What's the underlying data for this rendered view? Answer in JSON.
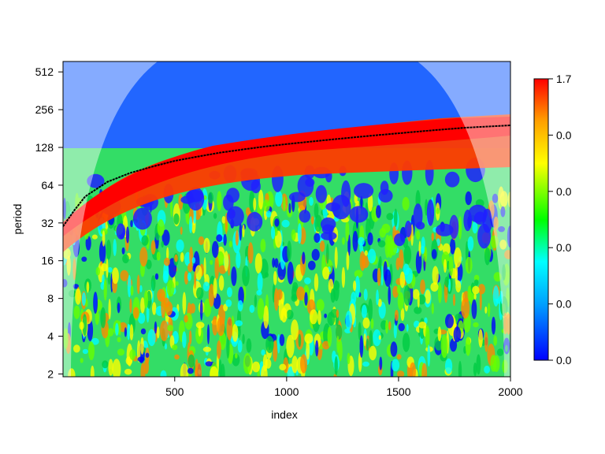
{
  "chart_data": {
    "type": "heatmap",
    "title": "",
    "xlabel": "index",
    "ylabel": "period",
    "x_ticks": [
      500,
      1000,
      1500,
      2000
    ],
    "y_ticks": [
      2,
      4,
      8,
      16,
      32,
      64,
      128,
      256,
      512
    ],
    "y_scale": "log2",
    "xlim": [
      1,
      2000
    ],
    "ylim": [
      1.9,
      620
    ],
    "colorbar": {
      "labels": [
        "1.7",
        "0.0",
        "0.0",
        "0.0",
        "0.0",
        "0.0"
      ],
      "colors": [
        "#ff0000",
        "#ffa500",
        "#ffff00",
        "#00ff00",
        "#00ffff",
        "#0000ff"
      ]
    },
    "ridge": {
      "color": "#000000",
      "x": [
        1,
        50,
        100,
        200,
        300,
        400,
        500,
        600,
        700,
        800,
        900,
        1000,
        1100,
        1200,
        1300,
        1400,
        1500,
        1600,
        1700,
        1800,
        1900,
        2000
      ],
      "y": [
        30,
        40,
        52,
        68,
        80,
        90,
        100,
        108,
        116,
        123,
        130,
        136,
        142,
        148,
        154,
        160,
        166,
        172,
        178,
        184,
        188,
        192
      ]
    },
    "cone_of_influence": true
  }
}
